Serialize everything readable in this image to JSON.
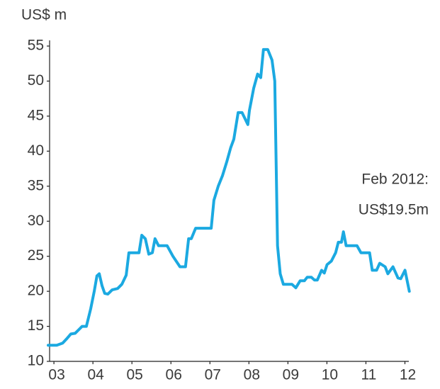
{
  "chart_data": {
    "type": "line",
    "y_label": "US$ m",
    "annotation": [
      "Feb 2012:",
      "US$19.5m"
    ],
    "x": [
      2002.78,
      2003.0,
      2003.15,
      2003.25,
      2003.36,
      2003.47,
      2003.58,
      2003.65,
      2003.76,
      2003.87,
      2003.96,
      2004.03,
      2004.09,
      2004.16,
      2004.23,
      2004.31,
      2004.42,
      2004.56,
      2004.67,
      2004.78,
      2004.85,
      2005.03,
      2005.11,
      2005.18,
      2005.27,
      2005.36,
      2005.45,
      2005.52,
      2005.61,
      2005.83,
      2005.98,
      2006.16,
      2006.3,
      2006.38,
      2006.45,
      2006.56,
      2006.96,
      2007.03,
      2007.14,
      2007.25,
      2007.36,
      2007.46,
      2007.54,
      2007.65,
      2007.75,
      2007.9,
      2007.94,
      2008.05,
      2008.15,
      2008.23,
      2008.3,
      2008.41,
      2008.52,
      2008.59,
      2008.66,
      2008.73,
      2008.81,
      2009.03,
      2009.13,
      2009.24,
      2009.35,
      2009.42,
      2009.53,
      2009.61,
      2009.68,
      2009.79,
      2009.86,
      2009.93,
      2010.04,
      2010.15,
      2010.22,
      2010.3,
      2010.35,
      2010.42,
      2010.7,
      2010.8,
      2011.02,
      2011.09,
      2011.2,
      2011.28,
      2011.42,
      2011.49,
      2011.62,
      2011.75,
      2011.82,
      2011.93,
      2012.04
    ],
    "series": [
      {
        "color": "#1ba9e1",
        "values": [
          12.3,
          12.3,
          12.6,
          13.2,
          13.9,
          14.0,
          14.6,
          15.0,
          15.0,
          17.5,
          20.0,
          22.2,
          22.5,
          20.8,
          19.7,
          19.6,
          20.2,
          20.4,
          21.0,
          22.3,
          25.5,
          25.5,
          25.5,
          28.0,
          27.5,
          25.3,
          25.5,
          27.5,
          26.5,
          26.5,
          25.0,
          23.5,
          23.5,
          27.5,
          27.5,
          29.0,
          29.0,
          33.0,
          35.0,
          36.5,
          38.5,
          40.5,
          41.7,
          45.5,
          45.5,
          43.8,
          45.8,
          49.0,
          51.0,
          50.5,
          54.5,
          54.5,
          53.0,
          50.0,
          26.5,
          22.5,
          21.0,
          21.0,
          20.5,
          21.5,
          21.5,
          22.0,
          22.0,
          21.6,
          21.6,
          23.0,
          22.6,
          23.8,
          24.3,
          25.5,
          27.0,
          27.0,
          28.5,
          26.5,
          26.5,
          25.5,
          25.5,
          23.0,
          23.0,
          24.0,
          23.5,
          22.5,
          23.5,
          21.9,
          21.8,
          23.0,
          20.0
        ]
      }
    ],
    "xlim": [
      2002.78,
      2012.1
    ],
    "xticks": [
      {
        "value": 2003,
        "label": "03"
      },
      {
        "value": 2004,
        "label": "04"
      },
      {
        "value": 2005,
        "label": "05"
      },
      {
        "value": 2006,
        "label": "06"
      },
      {
        "value": 2007,
        "label": "07"
      },
      {
        "value": 2008,
        "label": "08"
      },
      {
        "value": 2009,
        "label": "09"
      },
      {
        "value": 2010,
        "label": "10"
      },
      {
        "value": 2011,
        "label": "11"
      },
      {
        "value": 2012,
        "label": "12"
      }
    ],
    "ylim": [
      10,
      55
    ],
    "yticks": [
      10,
      15,
      20,
      25,
      30,
      35,
      40,
      45,
      50,
      55
    ]
  }
}
